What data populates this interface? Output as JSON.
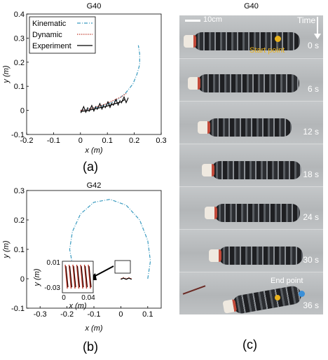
{
  "panel_a": {
    "title": "G40",
    "xlabel": "x (m)",
    "ylabel": "y (m)",
    "label": "(a)",
    "legend": [
      "Kinematic",
      "Dynamic",
      "Experiment"
    ],
    "xticks": [
      "-0.2",
      "-0.1",
      "0",
      "0.1",
      "0.2",
      "0.3"
    ],
    "yticks": [
      "-0.1",
      "0",
      "0.1",
      "0.2",
      "0.3",
      "0.4"
    ]
  },
  "panel_b": {
    "title": "G42",
    "xlabel": "x (m)",
    "ylabel": "y (m)",
    "label": "(b)",
    "xticks": [
      "-0.3",
      "-0.2",
      "-0.1",
      "0",
      "0.1"
    ],
    "yticks": [
      "-0.1",
      "0",
      "0.1",
      "0.2",
      "0.3"
    ],
    "inset": {
      "xlabel": "x (m)",
      "ylabel": "y (m)",
      "xticks": [
        "0",
        "0.04"
      ],
      "yticks": [
        "0.01",
        "-0.03"
      ]
    }
  },
  "panel_c": {
    "title": "G40",
    "label": "(c)",
    "scale_bar": "10cm",
    "time_label": "Time",
    "start_label": "Start point",
    "end_label": "End point",
    "frames": [
      "0 s",
      "6 s",
      "12 s",
      "18 s",
      "24 s",
      "30 s",
      "36 s"
    ]
  },
  "colors": {
    "kinematic": "#3a9bc0",
    "dynamic": "#c0392b",
    "experiment": "#000000",
    "start_point": "#e8b21e",
    "end_point": "#3a8fd8"
  },
  "chart_data": [
    {
      "type": "line",
      "title": "G40",
      "xlabel": "x (m)",
      "ylabel": "y (m)",
      "xlim": [
        -0.2,
        0.3
      ],
      "ylim": [
        -0.1,
        0.4
      ],
      "legend_position": "top-left",
      "series": [
        {
          "name": "Kinematic",
          "x": [
            0.0,
            0.05,
            0.1,
            0.14,
            0.17,
            0.195,
            0.21,
            0.22,
            0.22,
            0.215
          ],
          "y": [
            0.0,
            0.01,
            0.025,
            0.045,
            0.075,
            0.11,
            0.15,
            0.19,
            0.235,
            0.27
          ]
        },
        {
          "name": "Dynamic",
          "x": [
            0.0,
            0.03,
            0.06,
            0.09,
            0.12,
            0.15,
            0.17
          ],
          "y": [
            0.0,
            0.005,
            0.015,
            0.025,
            0.04,
            0.055,
            0.07
          ]
        },
        {
          "name": "Experiment",
          "x": [
            0.0,
            0.03,
            0.06,
            0.09,
            0.12,
            0.15,
            0.165
          ],
          "y": [
            -0.005,
            0.0,
            0.008,
            0.015,
            0.025,
            0.035,
            0.045
          ]
        }
      ]
    },
    {
      "type": "line",
      "title": "G42",
      "xlabel": "x (m)",
      "ylabel": "y (m)",
      "xlim": [
        -0.35,
        0.15
      ],
      "ylim": [
        -0.1,
        0.3
      ],
      "series": [
        {
          "name": "Kinematic",
          "x": [
            0.1,
            0.11,
            0.1,
            0.07,
            0.02,
            -0.04,
            -0.1,
            -0.15,
            -0.18,
            -0.19,
            -0.18
          ],
          "y": [
            0.0,
            0.06,
            0.13,
            0.2,
            0.25,
            0.27,
            0.26,
            0.22,
            0.16,
            0.1,
            0.05
          ]
        },
        {
          "name": "Dynamic",
          "x": [
            0.0,
            0.01,
            0.02,
            0.03,
            0.04
          ],
          "y": [
            0.0,
            0.004,
            0.0,
            0.004,
            0.0
          ]
        },
        {
          "name": "Experiment",
          "x": [
            0.0,
            0.01,
            0.02,
            0.03,
            0.04
          ],
          "y": [
            -0.002,
            0.002,
            -0.002,
            0.002,
            -0.002
          ]
        }
      ]
    }
  ]
}
